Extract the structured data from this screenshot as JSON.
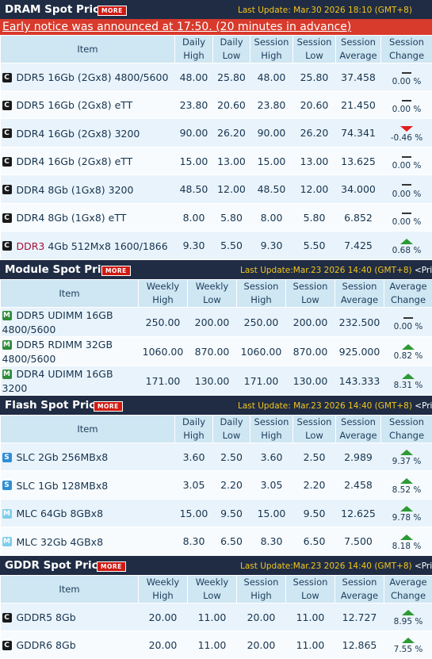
{
  "colors": {
    "up": "#2d9a35",
    "down": "#e0201d",
    "header": "#1f2c44",
    "notice": "#d83a2c"
  },
  "dram": {
    "title": "DRAM Spot Price",
    "more": "MORE",
    "update": "Last Update: Mar.30 2026 18:10 (GMT+8)",
    "notice": "Early notice was announced at 17:50. (20 minutes in advance)",
    "columns": [
      "Item",
      "Daily High",
      "Daily Low",
      "Session High",
      "Session Low",
      "Session Average",
      "Session Change"
    ],
    "rows": [
      {
        "badge": "C",
        "name": "DDR5 16Gb (2Gx8) 4800/5600",
        "v1": "48.00",
        "v2": "25.80",
        "v3": "48.00",
        "v4": "25.80",
        "v5": "37.458",
        "dir": "flat",
        "change": "0.00 %"
      },
      {
        "badge": "C",
        "name": "DDR5 16Gb (2Gx8) eTT",
        "v1": "23.80",
        "v2": "20.60",
        "v3": "23.80",
        "v4": "20.60",
        "v5": "21.450",
        "dir": "flat",
        "change": "0.00 %"
      },
      {
        "badge": "C",
        "name": "DDR4 16Gb (2Gx8) 3200",
        "v1": "90.00",
        "v2": "26.20",
        "v3": "90.00",
        "v4": "26.20",
        "v5": "74.341",
        "dir": "down",
        "change": "-0.46 %"
      },
      {
        "badge": "C",
        "name": "DDR4 16Gb (2Gx8) eTT",
        "v1": "15.00",
        "v2": "13.00",
        "v3": "15.00",
        "v4": "13.00",
        "v5": "13.625",
        "dir": "flat",
        "change": "0.00 %"
      },
      {
        "badge": "C",
        "name": "DDR4 8Gb (1Gx8) 3200",
        "v1": "48.50",
        "v2": "12.00",
        "v3": "48.50",
        "v4": "12.00",
        "v5": "34.000",
        "dir": "flat",
        "change": "0.00 %"
      },
      {
        "badge": "C",
        "name": "DDR4 8Gb (1Gx8) eTT",
        "v1": "8.00",
        "v2": "5.80",
        "v3": "8.00",
        "v4": "5.80",
        "v5": "6.852",
        "dir": "flat",
        "change": "0.00 %"
      },
      {
        "badge": "C",
        "name_prefix": "DDR3",
        "name_rest": " 4Gb 512Mx8 1600/1866",
        "v1": "9.30",
        "v2": "5.50",
        "v3": "9.30",
        "v4": "5.50",
        "v5": "7.425",
        "dir": "up",
        "change": "0.68 %"
      }
    ]
  },
  "module": {
    "title": "Module Spot Price",
    "more": "MORE",
    "update": "Last Update:Mar.23 2026 14:40 (GMT+8)",
    "price_link": "<Price",
    "columns": [
      "Item",
      "Weekly High",
      "Weekly Low",
      "Session High",
      "Session Low",
      "Session Average",
      "Average Change"
    ],
    "rows": [
      {
        "badge": "M",
        "name": "DDR5 UDIMM 16GB 4800/5600",
        "v1": "250.00",
        "v2": "200.00",
        "v3": "250.00",
        "v4": "200.00",
        "v5": "232.500",
        "dir": "flat",
        "change": "0.00 %"
      },
      {
        "badge": "M",
        "name": "DDR5 RDIMM 32GB 4800/5600",
        "v1": "1060.00",
        "v2": "870.00",
        "v3": "1060.00",
        "v4": "870.00",
        "v5": "925.000",
        "dir": "up",
        "change": "0.82 %"
      },
      {
        "badge": "M",
        "name": "DDR4 UDIMM 16GB 3200",
        "v1": "171.00",
        "v2": "130.00",
        "v3": "171.00",
        "v4": "130.00",
        "v5": "143.333",
        "dir": "up",
        "change": "8.31 %"
      }
    ]
  },
  "flash": {
    "title": "Flash Spot Price",
    "more": "MORE",
    "update": "Last Update: Mar.23 2026 14:40 (GMT+8)",
    "price_link": "<Price",
    "columns": [
      "Item",
      "Daily High",
      "Daily Low",
      "Session High",
      "Session Low",
      "Session Average",
      "Session Change"
    ],
    "rows": [
      {
        "badge": "S",
        "name": "SLC 2Gb 256MBx8",
        "v1": "3.60",
        "v2": "2.50",
        "v3": "3.60",
        "v4": "2.50",
        "v5": "2.989",
        "dir": "up",
        "change": "9.37 %"
      },
      {
        "badge": "S",
        "name": "SLC 1Gb 128MBx8",
        "v1": "3.05",
        "v2": "2.20",
        "v3": "3.05",
        "v4": "2.20",
        "v5": "2.458",
        "dir": "up",
        "change": "8.52 %"
      },
      {
        "badge": "M",
        "name": "MLC 64Gb 8GBx8",
        "v1": "15.00",
        "v2": "9.50",
        "v3": "15.00",
        "v4": "9.50",
        "v5": "12.625",
        "dir": "up",
        "change": "9.78 %"
      },
      {
        "badge": "M",
        "name": "MLC 32Gb 4GBx8",
        "v1": "8.30",
        "v2": "6.50",
        "v3": "8.30",
        "v4": "6.50",
        "v5": "7.500",
        "dir": "up",
        "change": "8.18 %"
      }
    ]
  },
  "gddr": {
    "title": "GDDR Spot Price",
    "more": "MORE",
    "update": "Last Update:Mar.23 2026 14:40 (GMT+8)",
    "price_link": "<Price",
    "columns": [
      "Item",
      "Weekly High",
      "Weekly Low",
      "Session High",
      "Session Low",
      "Session Average",
      "Average Change"
    ],
    "rows": [
      {
        "badge": "C",
        "name": "GDDR5 8Gb",
        "v1": "20.00",
        "v2": "11.00",
        "v3": "20.00",
        "v4": "11.00",
        "v5": "12.727",
        "dir": "up",
        "change": "8.95 %"
      },
      {
        "badge": "C",
        "name": "GDDR6 8Gb",
        "v1": "20.00",
        "v2": "11.00",
        "v3": "20.00",
        "v4": "11.00",
        "v5": "12.865",
        "dir": "up",
        "change": "7.55 %"
      }
    ]
  }
}
